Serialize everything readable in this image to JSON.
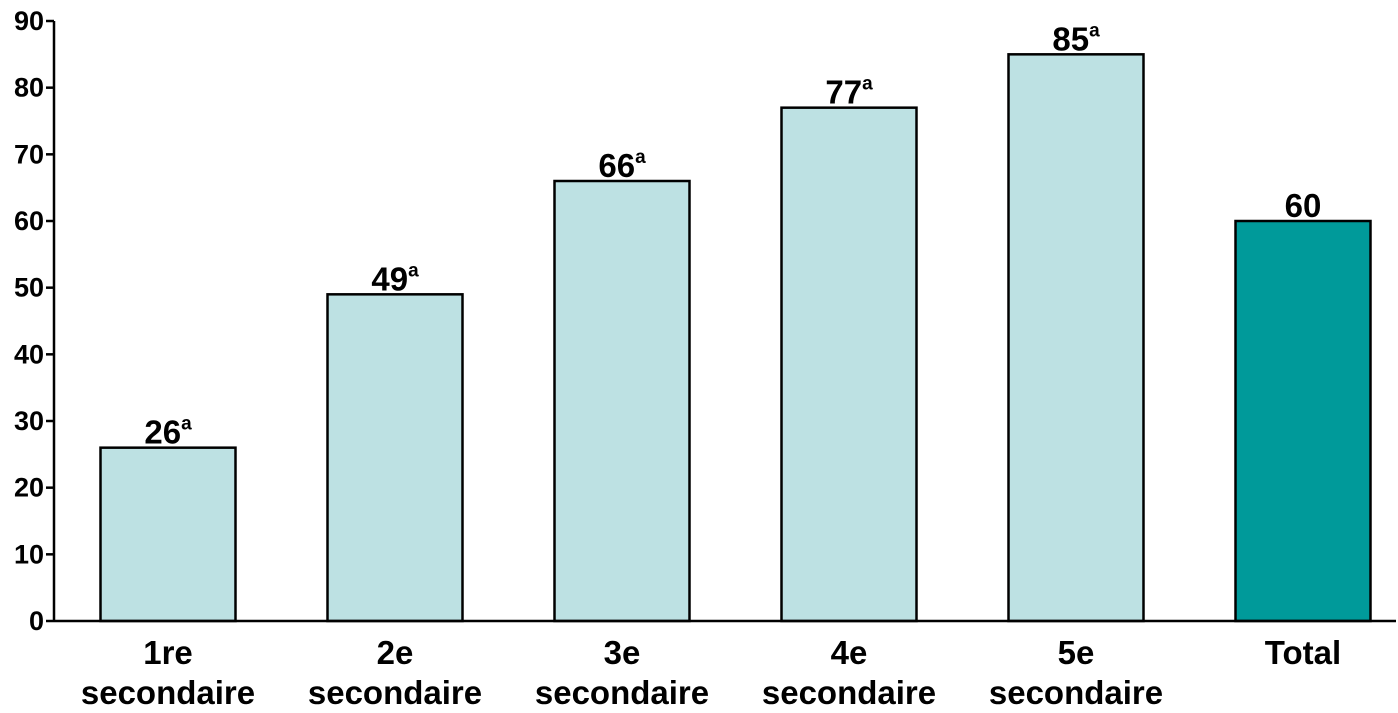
{
  "chart_data": {
    "type": "bar",
    "categories": [
      [
        "1re",
        "secondaire"
      ],
      [
        "2e",
        "secondaire"
      ],
      [
        "3e",
        "secondaire"
      ],
      [
        "4e",
        "secondaire"
      ],
      [
        "5e",
        "secondaire"
      ],
      [
        "Total"
      ]
    ],
    "values": [
      26,
      49,
      66,
      77,
      85,
      60
    ],
    "value_labels": [
      "26",
      "49",
      "66",
      "77",
      "85",
      "60"
    ],
    "superscripts": [
      "a",
      "a",
      "a",
      "a",
      "a",
      ""
    ],
    "ylim": [
      0,
      90
    ],
    "y_ticks": [
      0,
      10,
      20,
      30,
      40,
      50,
      60,
      70,
      80,
      90
    ],
    "grid": false,
    "legend": "none",
    "colors": {
      "bar": "#bde1e3",
      "highlight_bar": "#009a9a",
      "bar_outline": "#000000",
      "axis": "#000000"
    },
    "highlight_index": 5
  }
}
